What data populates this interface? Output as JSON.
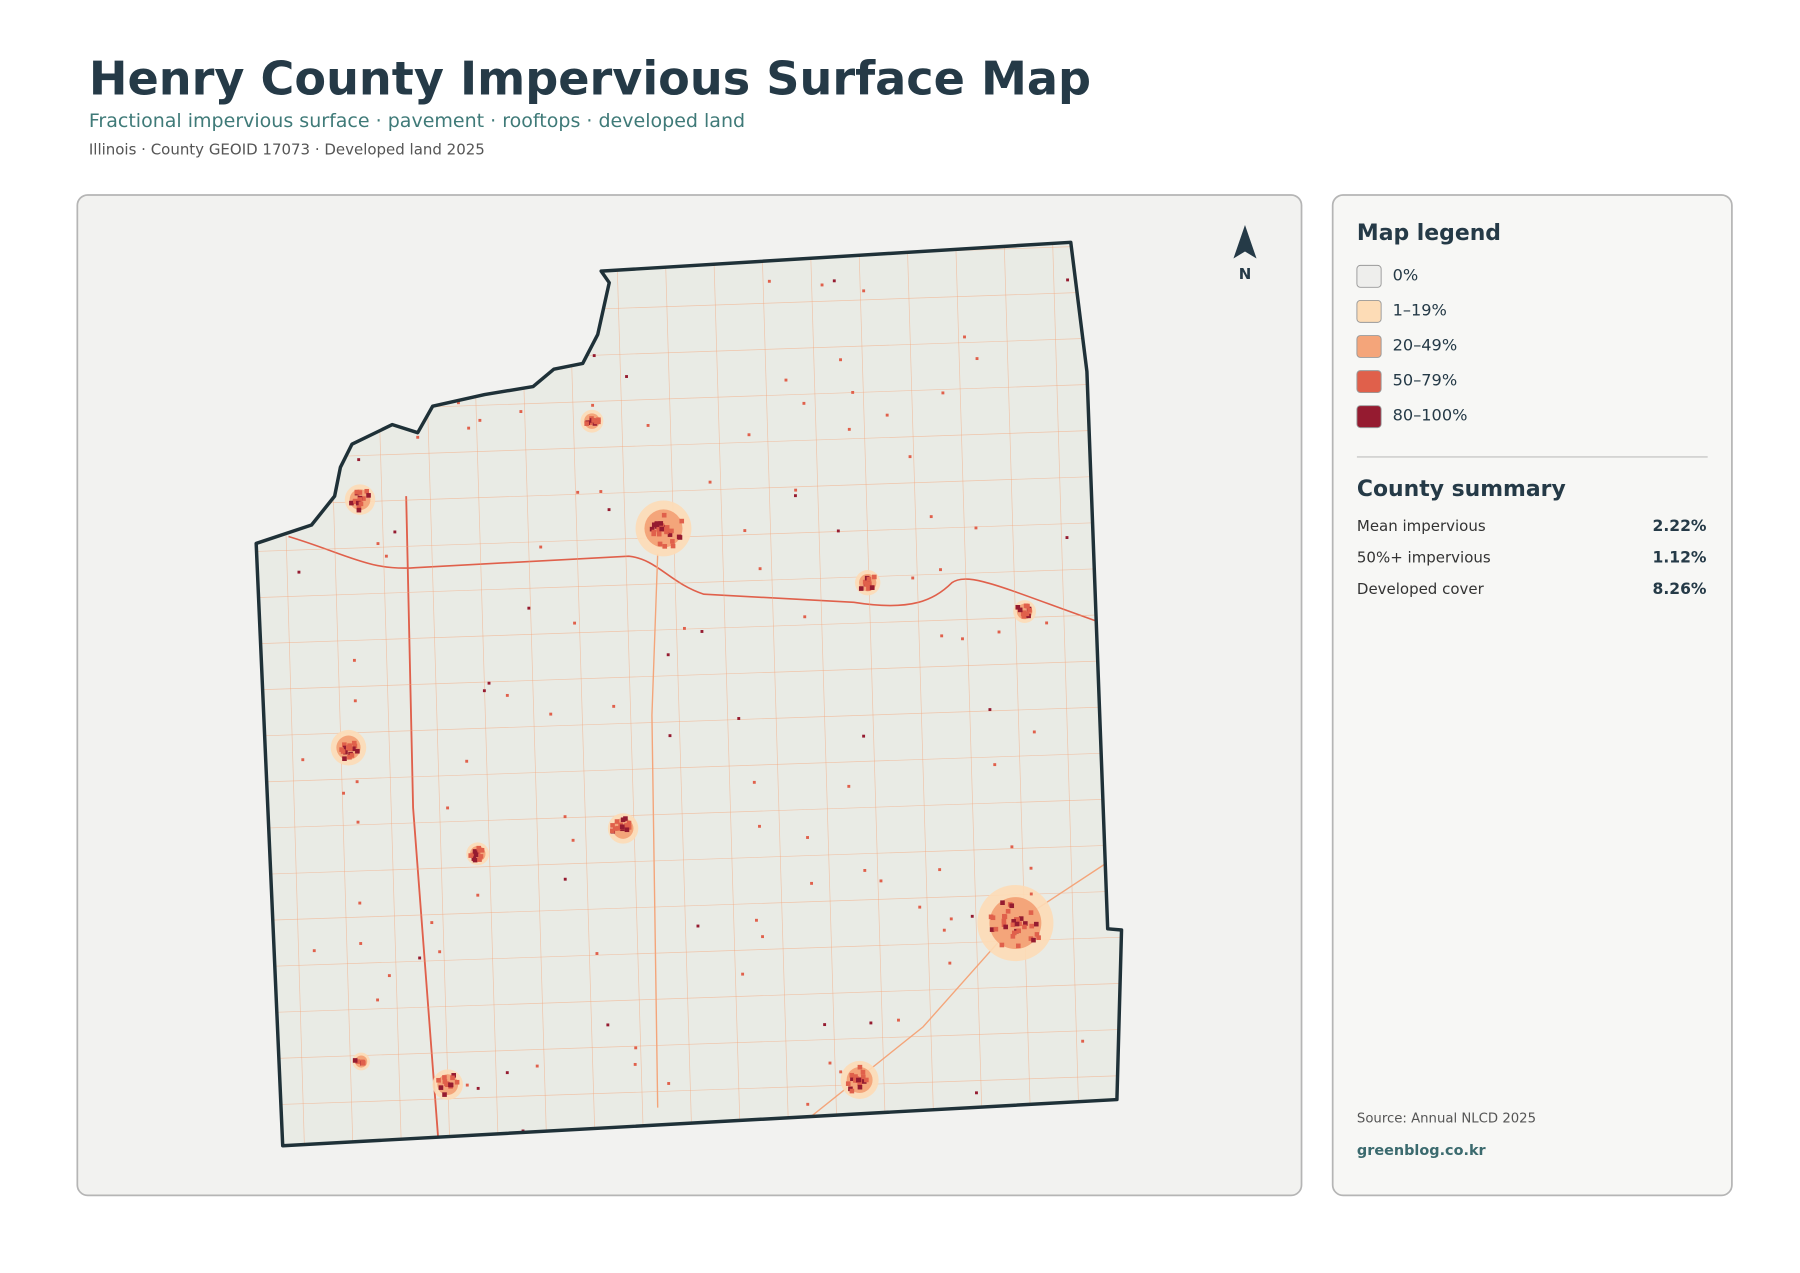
{
  "header": {
    "title": "Henry County Impervious Surface Map",
    "subtitle": "Fractional impervious surface · pavement · rooftops · developed land",
    "meta": "Illinois · County GEOID 17073 · Developed land 2025"
  },
  "north": "N",
  "legend": {
    "title": "Map legend",
    "items": [
      {
        "label": "0%",
        "color": "#eeeeec"
      },
      {
        "label": "1–19%",
        "color": "#fddcb6"
      },
      {
        "label": "20–49%",
        "color": "#f4a57a"
      },
      {
        "label": "50–79%",
        "color": "#e0604b"
      },
      {
        "label": "80–100%",
        "color": "#951b30"
      }
    ]
  },
  "summary": {
    "title": "County summary",
    "rows": [
      {
        "label": "Mean impervious",
        "value": "2.22%"
      },
      {
        "label": "50%+ impervious",
        "value": "1.12%"
      },
      {
        "label": "Developed cover",
        "value": "8.26%"
      }
    ]
  },
  "footer": {
    "source": "Source: Annual NLCD 2025",
    "site": "greenblog.co.kr"
  }
}
